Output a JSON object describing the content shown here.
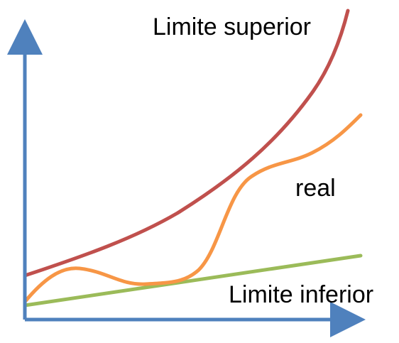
{
  "diagram": {
    "labels": {
      "upper": "Limite superior",
      "actual": "real",
      "lower": "Limite inferior"
    },
    "colors": {
      "axes": "#4F81BD",
      "upper": "#C0504D",
      "actual": "#F79646",
      "lower": "#9BBB59",
      "text": "#000000"
    }
  }
}
